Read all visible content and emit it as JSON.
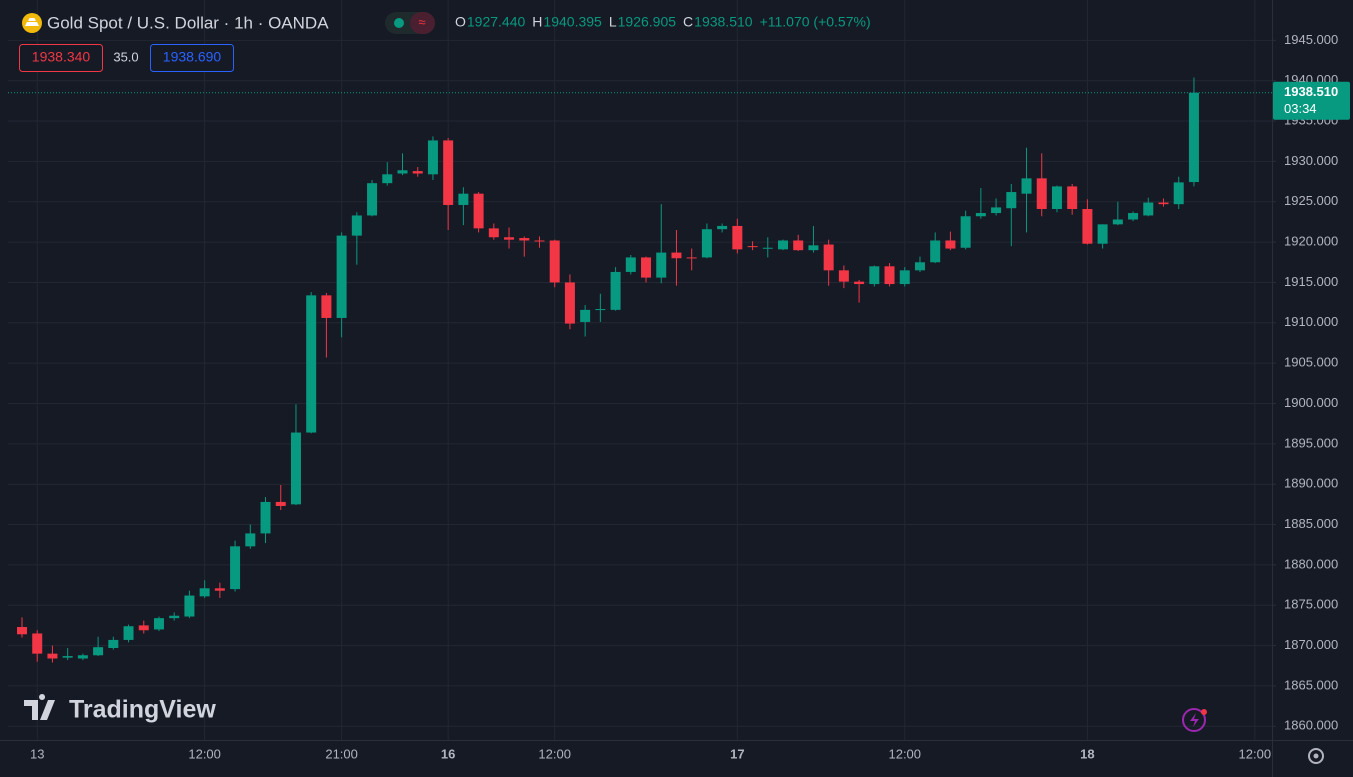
{
  "chart_data": {
    "type": "candlestick",
    "title": "Gold Spot / U.S. Dollar · 1h · OANDA",
    "legend": [
      {
        "label": "O",
        "value": "1927.440"
      },
      {
        "label": "H",
        "value": "1940.395"
      },
      {
        "label": "L",
        "value": "1926.905"
      },
      {
        "label": "C",
        "value": "1938.510"
      }
    ],
    "change": "+11.070 (+0.57%)",
    "bid": "1938.340",
    "spread": "35.0",
    "ask": "1938.690",
    "last_price_label": "1938.510",
    "countdown": "03:34",
    "watermark": "TradingView",
    "up_color": "#089981",
    "down_color": "#f23645",
    "grid": true,
    "categories": [
      null,
      "13",
      null,
      null,
      null,
      null,
      null,
      null,
      null,
      null,
      null,
      null,
      "12:00",
      null,
      null,
      null,
      null,
      null,
      null,
      null,
      null,
      "21:00",
      null,
      null,
      null,
      null,
      null,
      null,
      "16",
      null,
      null,
      null,
      null,
      null,
      null,
      "12:00",
      null,
      null,
      null,
      null,
      null,
      null,
      null,
      null,
      null,
      null,
      null,
      "17",
      null,
      null,
      null,
      null,
      null,
      null,
      null,
      null,
      null,
      null,
      "12:00",
      null,
      null,
      null,
      null,
      null,
      null,
      null,
      null,
      null,
      null,
      null,
      "18",
      null,
      null,
      null,
      null,
      null,
      null,
      null,
      null,
      null,
      null,
      "12:00"
    ],
    "open": [
      1872.3,
      1871.5,
      1869.0,
      1868.5,
      1868.4,
      1868.8,
      1869.7,
      1870.7,
      1872.5,
      1872.0,
      1873.4,
      1873.6,
      1876.1,
      1877.1,
      1877.0,
      1882.3,
      1883.9,
      1887.8,
      1887.5,
      1896.4,
      1913.4,
      1910.6,
      1920.8,
      1923.3,
      1927.3,
      1928.5,
      1928.8,
      1928.4,
      1932.6,
      1924.6,
      1926.0,
      1921.7,
      1920.6,
      1920.5,
      1920.2,
      1920.2,
      1915.0,
      1910.1,
      1911.6,
      1911.6,
      1916.3,
      1918.1,
      1915.6,
      1918.7,
      1918.1,
      1918.1,
      1921.6,
      1922.0,
      1919.5,
      1919.2,
      1919.1,
      1920.2,
      1919.0,
      1919.7,
      1916.5,
      1915.1,
      1914.8,
      1917.0,
      1914.8,
      1916.5,
      1917.5,
      1920.2,
      1919.3,
      1923.2,
      1923.6,
      1924.2,
      1926.0,
      1927.9,
      1924.1,
      1926.9,
      1924.1,
      1919.8,
      1922.2,
      1922.8,
      1923.3,
      1924.9,
      1924.7,
      1927.44,
      null,
      null,
      null,
      null
    ],
    "high": [
      1873.5,
      1871.9,
      1870.0,
      1869.7,
      1869.0,
      1871.1,
      1871.1,
      1872.6,
      1873.1,
      1873.6,
      1874.1,
      1876.8,
      1878.1,
      1877.8,
      1883.0,
      1885.0,
      1888.4,
      1889.9,
      1899.9,
      1913.8,
      1913.7,
      1921.2,
      1923.7,
      1927.7,
      1929.9,
      1931.0,
      1929.3,
      1933.1,
      1932.9,
      1926.8,
      1926.2,
      1922.3,
      1921.8,
      1920.7,
      1920.7,
      1920.3,
      1916.0,
      1912.2,
      1913.6,
      1916.9,
      1918.4,
      1918.2,
      1924.7,
      1921.5,
      1919.2,
      1922.3,
      1922.3,
      1922.9,
      1920.1,
      1920.6,
      1920.3,
      1920.9,
      1922.0,
      1920.3,
      1917.1,
      1915.3,
      1917.1,
      1917.4,
      1916.9,
      1918.2,
      1921.2,
      1921.3,
      1923.9,
      1926.7,
      1925.4,
      1927.2,
      1931.7,
      1931.0,
      1927.0,
      1927.2,
      1925.3,
      1922.2,
      1925.0,
      1923.8,
      1925.5,
      1925.4,
      1928.1,
      1940.395,
      null,
      null,
      null,
      null
    ],
    "low": [
      1871.0,
      1868.0,
      1867.9,
      1868.2,
      1868.2,
      1868.7,
      1869.5,
      1870.4,
      1871.5,
      1871.8,
      1873.1,
      1873.4,
      1875.9,
      1875.9,
      1876.7,
      1882.0,
      1882.7,
      1886.8,
      1887.4,
      1896.3,
      1905.7,
      1908.2,
      1917.2,
      1923.2,
      1927.0,
      1928.3,
      1928.1,
      1927.7,
      1921.5,
      1922.1,
      1921.2,
      1920.3,
      1919.2,
      1918.2,
      1919.3,
      1914.4,
      1909.2,
      1908.3,
      1910.1,
      1911.5,
      1916.0,
      1915.0,
      1914.9,
      1914.6,
      1916.5,
      1918.0,
      1921.2,
      1918.6,
      1919.0,
      1918.1,
      1919.0,
      1918.9,
      1918.7,
      1914.6,
      1914.3,
      1912.5,
      1914.5,
      1914.5,
      1914.5,
      1916.3,
      1917.4,
      1919.0,
      1919.1,
      1922.9,
      1923.3,
      1919.5,
      1921.2,
      1923.2,
      1923.7,
      1923.4,
      1919.7,
      1919.2,
      1922.1,
      1922.6,
      1923.2,
      1924.4,
      1924.1,
      1926.905,
      null,
      null,
      null,
      null
    ],
    "close": [
      1871.4,
      1869.0,
      1868.4,
      1868.7,
      1868.8,
      1869.8,
      1870.7,
      1872.4,
      1871.9,
      1873.4,
      1873.7,
      1876.2,
      1877.1,
      1876.8,
      1882.3,
      1883.9,
      1887.8,
      1887.3,
      1896.4,
      1913.4,
      1910.6,
      1920.8,
      1923.3,
      1927.3,
      1928.4,
      1928.9,
      1928.5,
      1932.6,
      1924.6,
      1926.0,
      1921.7,
      1920.6,
      1920.3,
      1920.2,
      1920.1,
      1915.0,
      1909.9,
      1911.6,
      1911.7,
      1916.3,
      1918.1,
      1915.6,
      1918.7,
      1918.0,
      1918.0,
      1921.6,
      1922.0,
      1919.1,
      1919.4,
      1919.3,
      1920.2,
      1919.0,
      1919.6,
      1916.5,
      1915.1,
      1914.8,
      1917.0,
      1914.8,
      1916.5,
      1917.5,
      1920.2,
      1919.2,
      1923.2,
      1923.6,
      1924.3,
      1926.2,
      1927.9,
      1924.1,
      1926.9,
      1924.1,
      1919.8,
      1922.2,
      1922.8,
      1923.6,
      1924.9,
      1924.7,
      1927.4,
      1938.51,
      null,
      null,
      null,
      null
    ],
    "ylim": [
      1858.3,
      1950.0
    ],
    "yticks": [
      {
        "value": 1860,
        "label": "1860.000"
      },
      {
        "value": 1865,
        "label": "1865.000"
      },
      {
        "value": 1870,
        "label": "1870.000"
      },
      {
        "value": 1875,
        "label": "1875.000"
      },
      {
        "value": 1880,
        "label": "1880.000"
      },
      {
        "value": 1885,
        "label": "1885.000"
      },
      {
        "value": 1890,
        "label": "1890.000"
      },
      {
        "value": 1895,
        "label": "1895.000"
      },
      {
        "value": 1900,
        "label": "1900.000"
      },
      {
        "value": 1905,
        "label": "1905.000"
      },
      {
        "value": 1910,
        "label": "1910.000"
      },
      {
        "value": 1915,
        "label": "1915.000"
      },
      {
        "value": 1920,
        "label": "1920.000"
      },
      {
        "value": 1925,
        "label": "1925.000"
      },
      {
        "value": 1930,
        "label": "1930.000"
      },
      {
        "value": 1935,
        "label": "1935.000"
      },
      {
        "value": 1940,
        "label": "1940.000"
      },
      {
        "value": 1945,
        "label": "1945.000"
      }
    ]
  }
}
